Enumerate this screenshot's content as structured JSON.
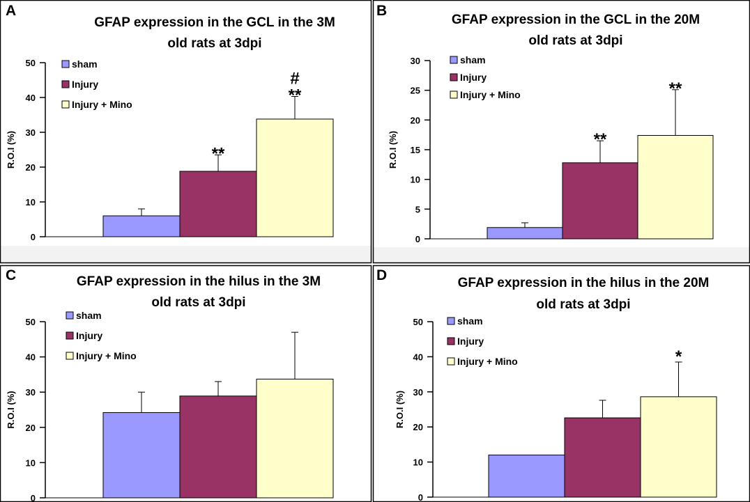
{
  "chart_data": [
    {
      "type": "bar",
      "panel": "A",
      "title_lines": [
        "GFAP expression in the GCL in the 3M",
        "old rats at 3dpi"
      ],
      "ylabel": "R.O.I (%)",
      "ylim": [
        0,
        50
      ],
      "yticks": [
        0,
        10,
        20,
        30,
        40,
        50
      ],
      "legend": [
        "sham",
        "Injury",
        "Injury + Mino"
      ],
      "legend_position": "top-left",
      "grid": false,
      "series": [
        {
          "name": "sham",
          "value": 6.0,
          "error": 2.0,
          "annotation": ""
        },
        {
          "name": "Injury",
          "value": 18.8,
          "error": 4.7,
          "annotation": "**"
        },
        {
          "name": "Injury + Mino",
          "value": 33.8,
          "error": 6.5,
          "annotation": "**",
          "annotation2": "#"
        }
      ]
    },
    {
      "type": "bar",
      "panel": "B",
      "title_lines": [
        "GFAP expression in the GCL in the 20M",
        "old rats at 3dpi"
      ],
      "ylabel": "R.O.I (%)",
      "ylim": [
        0,
        30
      ],
      "yticks": [
        0,
        5,
        10,
        15,
        20,
        25,
        30
      ],
      "legend": [
        "sham",
        "Injury",
        "Injury + Mino"
      ],
      "legend_position": "top-left",
      "grid": false,
      "series": [
        {
          "name": "sham",
          "value": 1.9,
          "error": 0.8,
          "annotation": ""
        },
        {
          "name": "Injury",
          "value": 12.8,
          "error": 3.7,
          "annotation": "**"
        },
        {
          "name": "Injury + Mino",
          "value": 17.4,
          "error": 7.7,
          "annotation": "**"
        }
      ]
    },
    {
      "type": "bar",
      "panel": "C",
      "title_lines": [
        "GFAP expression in the hilus in the 3M",
        "old rats at 3dpi"
      ],
      "ylabel": "R.O.I (%)",
      "ylim": [
        0,
        50
      ],
      "yticks": [
        0,
        10,
        20,
        30,
        40,
        50
      ],
      "legend": [
        "sham",
        "Injury",
        "Injury + Mino"
      ],
      "legend_position": "top-left",
      "grid": false,
      "series": [
        {
          "name": "sham",
          "value": 24.2,
          "error": 5.8,
          "annotation": ""
        },
        {
          "name": "Injury",
          "value": 28.9,
          "error": 4.1,
          "annotation": ""
        },
        {
          "name": "Injury + Mino",
          "value": 33.7,
          "error": 13.3,
          "annotation": ""
        }
      ]
    },
    {
      "type": "bar",
      "panel": "D",
      "title_lines": [
        "GFAP expression in the hilus in the 20M",
        "old rats at 3dpi"
      ],
      "ylabel": "R.O.I (%)",
      "ylim": [
        0,
        50
      ],
      "yticks": [
        0,
        10,
        20,
        30,
        40,
        50
      ],
      "legend": [
        "sham",
        "Injury",
        "Injury + Mino"
      ],
      "legend_position": "top-left",
      "grid": false,
      "series": [
        {
          "name": "sham",
          "value": 12.0,
          "error": 0,
          "annotation": ""
        },
        {
          "name": "Injury",
          "value": 22.6,
          "error": 5.0,
          "annotation": ""
        },
        {
          "name": "Injury + Mino",
          "value": 28.6,
          "error": 9.9,
          "annotation": "*"
        }
      ]
    }
  ],
  "colors": {
    "sham": "#9999ff",
    "injury": "#993366",
    "injury_mino": "#ffffcc",
    "border": "#000000",
    "panel_bottom_band": "#f2f2f2"
  }
}
